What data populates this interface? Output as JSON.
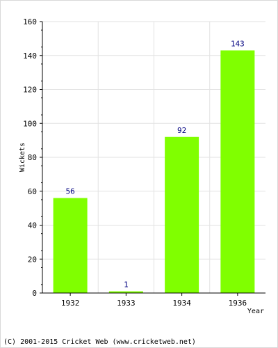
{
  "chart_data": {
    "type": "bar",
    "categories": [
      "1932",
      "1933",
      "1934",
      "1936"
    ],
    "values": [
      56,
      1,
      92,
      143
    ],
    "xlabel": "Year",
    "ylabel": "Wickets",
    "ylim": [
      0,
      160
    ],
    "yticks": [
      0,
      20,
      40,
      60,
      80,
      100,
      120,
      140,
      160
    ],
    "grid": true,
    "bar_color": "#80ff00",
    "label_color": "#000080"
  },
  "footer": "(C) 2001-2015 Cricket Web (www.cricketweb.net)"
}
